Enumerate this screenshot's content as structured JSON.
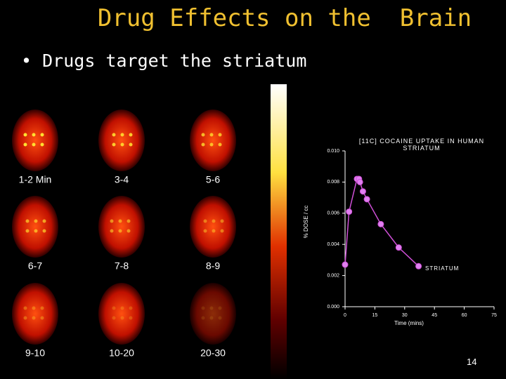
{
  "slide": {
    "title": "Drug Effects on the  Brain",
    "bullet": "Drugs target the striatum",
    "page_number": "14",
    "images": [
      "1-2 Min",
      "3-4",
      "5-6",
      "6-7",
      "7-8",
      "8-9",
      "9-10",
      "10-20",
      "20-30"
    ]
  },
  "chart_data": {
    "type": "line",
    "title": "[11C] COCAINE UPTAKE IN HUMAN STRIATUM",
    "x_label": "Time (mins)",
    "y_label": "% DOSE / cc",
    "annotation": "STRIATUM",
    "x": [
      0,
      2,
      6,
      7,
      7.5,
      9,
      11,
      18,
      27,
      37
    ],
    "series": [
      {
        "name": "STRIATUM",
        "color": "#d050d8",
        "values": [
          0.0027,
          0.0061,
          0.0082,
          0.0082,
          0.008,
          0.0074,
          0.0069,
          0.0053,
          0.0038,
          0.0026
        ]
      }
    ],
    "xlim": [
      0,
      75
    ],
    "xticks": [
      0,
      15,
      30,
      45,
      60,
      75
    ],
    "ylim": [
      0,
      0.01
    ],
    "yticks": [
      {
        "value": 0,
        "label": "0.000"
      },
      {
        "value": 0.002,
        "label": "0.002"
      },
      {
        "value": 0.004,
        "label": "0.004"
      },
      {
        "value": 0.006,
        "label": "0.006"
      },
      {
        "value": 0.008,
        "label": "0.008"
      },
      {
        "value": 0.01,
        "label": "0.010"
      }
    ]
  }
}
